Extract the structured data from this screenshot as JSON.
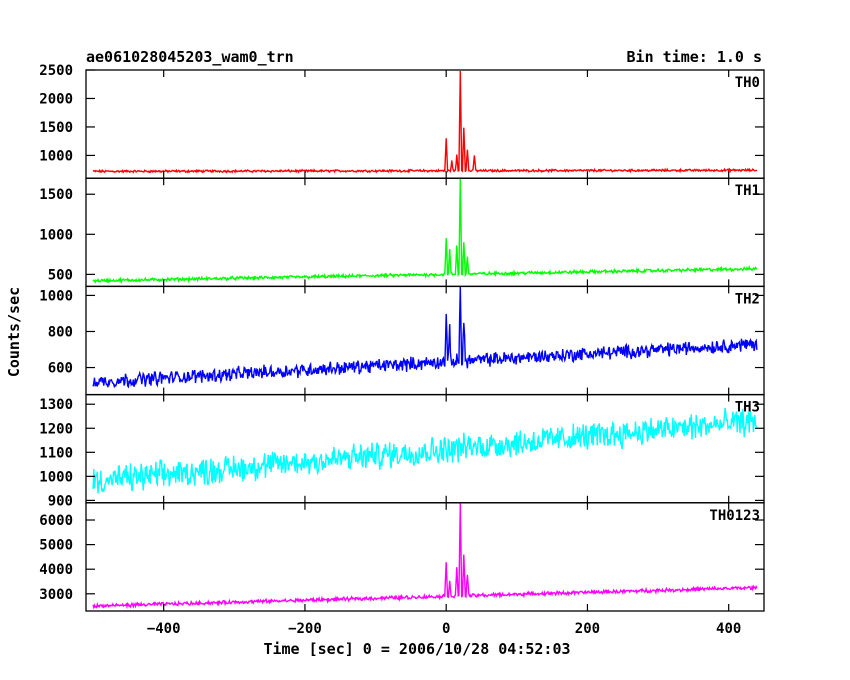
{
  "chart_data": {
    "type": "line",
    "title": "ae061028045203_wam0_trn",
    "bin_time": "Bin time: 1.0 s",
    "xlabel": "Time [sec] 0 = 2006/10/28 04:52:03",
    "ylabel": "Counts/sec",
    "xlim": [
      -510,
      450
    ],
    "x_ticks": [
      -400,
      -200,
      0,
      200,
      400
    ],
    "x_tick_labels": [
      "−400",
      "−200",
      "0",
      "200",
      "400"
    ],
    "grid": false,
    "panels": [
      {
        "name": "TH0",
        "color": "#ff0000",
        "ylim": [
          600,
          2500
        ],
        "y_ticks": [
          1000,
          1500,
          2000,
          2500
        ],
        "y_tick_labels": [
          "1000",
          "1500",
          "2000",
          "2500"
        ],
        "baseline_start": 720,
        "baseline_end": 740,
        "noise": 15,
        "peaks": [
          [
            0,
            1300
          ],
          [
            8,
            900
          ],
          [
            15,
            1000
          ],
          [
            20,
            2500
          ],
          [
            25,
            1500
          ],
          [
            30,
            1100
          ],
          [
            40,
            1000
          ]
        ]
      },
      {
        "name": "TH1",
        "color": "#00ff00",
        "ylim": [
          350,
          1700
        ],
        "y_ticks": [
          500,
          1000,
          1500
        ],
        "y_tick_labels": [
          "500",
          "1000",
          "1500"
        ],
        "baseline_start": 420,
        "baseline_end": 570,
        "noise": 15,
        "peaks": [
          [
            0,
            960
          ],
          [
            5,
            800
          ],
          [
            15,
            850
          ],
          [
            20,
            1700
          ],
          [
            25,
            900
          ],
          [
            30,
            700
          ]
        ]
      },
      {
        "name": "TH2",
        "color": "#0000ff",
        "ylim": [
          450,
          1050
        ],
        "y_ticks": [
          600,
          800,
          1000
        ],
        "y_tick_labels": [
          "600",
          "800",
          "1000"
        ],
        "baseline_start": 520,
        "baseline_end": 730,
        "noise": 30,
        "peaks": [
          [
            0,
            880
          ],
          [
            5,
            800
          ],
          [
            20,
            1050
          ],
          [
            25,
            850
          ]
        ]
      },
      {
        "name": "TH3",
        "color": "#00ffff",
        "ylim": [
          890,
          1340
        ],
        "y_ticks": [
          900,
          1000,
          1100,
          1200,
          1300
        ],
        "y_tick_labels": [
          "900",
          "1000",
          "1100",
          "1200",
          "1300"
        ],
        "baseline_start": 980,
        "baseline_end": 1230,
        "noise": 45,
        "peaks": []
      },
      {
        "name": "TH0123",
        "color": "#ff00ff",
        "ylim": [
          2300,
          6700
        ],
        "y_ticks": [
          3000,
          4000,
          5000,
          6000
        ],
        "y_tick_labels": [
          "3000",
          "4000",
          "5000",
          "6000"
        ],
        "baseline_start": 2500,
        "baseline_end": 3250,
        "noise": 55,
        "peaks": [
          [
            0,
            4300
          ],
          [
            5,
            3500
          ],
          [
            15,
            4000
          ],
          [
            20,
            6700
          ],
          [
            25,
            4500
          ],
          [
            30,
            3800
          ]
        ]
      }
    ]
  }
}
